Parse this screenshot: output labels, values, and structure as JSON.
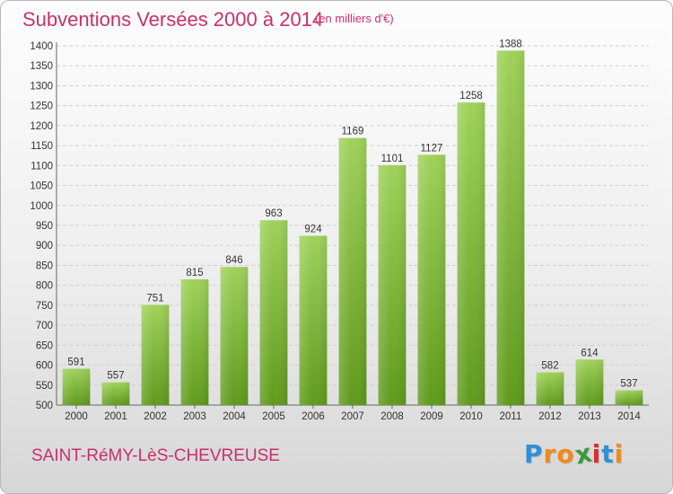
{
  "header": {
    "title": "Subventions Versées 2000 à 2014",
    "unit": "(en milliers d'€)"
  },
  "footer": {
    "commune": "SAINT-RéMY-LèS-CHEVREUSE",
    "logo_letters": [
      "P",
      "r",
      "o",
      "x",
      "i",
      "t",
      "i"
    ]
  },
  "colors": {
    "title": "#c8306a",
    "bar_top": "#9fd25a",
    "bar_bottom": "#5f9a1c",
    "grid": "#d0d0d0",
    "logo": [
      "#2f8fd8",
      "#f08a1c",
      "#f08a1c",
      "#3a9a3a",
      "#d83030",
      "#2f8fd8",
      "#f08a1c"
    ]
  },
  "chart_data": {
    "type": "bar",
    "title": "Subventions Versées 2000 à 2014",
    "subtitle": "(en milliers d'€)",
    "categories": [
      "2000",
      "2001",
      "2002",
      "2003",
      "2004",
      "2005",
      "2006",
      "2007",
      "2008",
      "2009",
      "2010",
      "2011",
      "2012",
      "2013",
      "2014"
    ],
    "values": [
      591,
      557,
      751,
      815,
      846,
      963,
      924,
      1169,
      1101,
      1127,
      1258,
      1388,
      582,
      614,
      537
    ],
    "value_labels": [
      "591",
      "557",
      "751",
      "815",
      "846",
      "963",
      "924",
      "1169",
      "1101",
      "1127",
      "1258",
      "1388",
      "582",
      "614",
      "537"
    ],
    "yticks": [
      500,
      550,
      600,
      650,
      700,
      750,
      800,
      850,
      900,
      950,
      1000,
      1050,
      1100,
      1150,
      1200,
      1250,
      1300,
      1350,
      1400
    ],
    "ytick_labels": [
      "500",
      "550",
      "600",
      "650",
      "700",
      "750",
      "800",
      "850",
      "900",
      "950",
      "1000",
      "1050",
      "1100",
      "1150",
      "1200",
      "1250",
      "1300",
      "1350",
      "1400"
    ],
    "ylim": [
      500,
      1400
    ],
    "xlabel": "",
    "ylabel": "",
    "grid": true,
    "legend": "none"
  }
}
